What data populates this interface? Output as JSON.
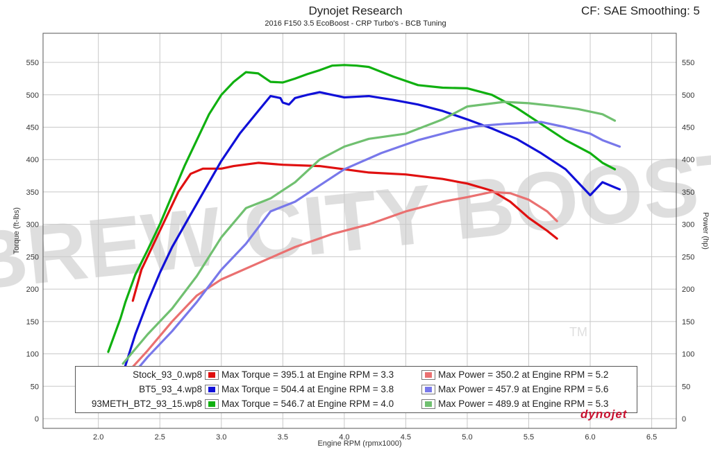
{
  "header": {
    "title": "Dynojet Research",
    "subtitle": "2016 F150 3.5 EcoBoost - CRP Turbo's - BCB Tuning",
    "corner_text": "CF: SAE Smoothing: 5"
  },
  "watermark": {
    "text": "BREW CITY BOOST",
    "mark": "TM"
  },
  "brand_logo": "dynojet",
  "legend": [
    {
      "name": "Stock_93_0.wp8",
      "torque_color": "#e01010",
      "power_color": "#ea7070",
      "torque_text": "Max Torque = 395.1 at Engine RPM = 3.3",
      "power_text": "Max Power = 350.2 at Engine RPM = 5.2"
    },
    {
      "name": "BT5_93_4.wp8",
      "torque_color": "#1010d8",
      "power_color": "#7878ea",
      "torque_text": "Max Torque = 504.4 at Engine RPM = 3.8",
      "power_text": "Max Power = 457.9 at Engine RPM = 5.6"
    },
    {
      "name": "93METH_BT2_93_15.wp8",
      "torque_color": "#10b010",
      "power_color": "#70c070",
      "torque_text": "Max Torque = 546.7 at Engine RPM = 4.0",
      "power_text": "Max Power = 489.9 at Engine RPM = 5.3"
    }
  ],
  "chart_data": {
    "type": "line",
    "title": "Dynojet Research",
    "subtitle": "2016 F150 3.5 EcoBoost - CRP Turbo's - BCB Tuning",
    "xlabel": "Engine RPM (rpmx1000)",
    "ylabel_left": "Torque (ft-lbs)",
    "ylabel_right": "Power (hp)",
    "xlim": [
      1.55,
      6.7
    ],
    "ylim": [
      -15,
      595
    ],
    "xticks": [
      "2.0",
      "2.5",
      "3.0",
      "3.5",
      "4.0",
      "4.5",
      "5.0",
      "5.5",
      "6.0",
      "6.5"
    ],
    "yticks": [
      "0",
      "50",
      "100",
      "150",
      "200",
      "250",
      "300",
      "350",
      "400",
      "450",
      "500",
      "550"
    ],
    "grid": true,
    "series": [
      {
        "name": "Stock_93_0.wp8",
        "measure": "torque",
        "color": "#e01010",
        "x": [
          2.28,
          2.35,
          2.5,
          2.65,
          2.75,
          2.85,
          3.0,
          3.1,
          3.3,
          3.5,
          3.8,
          4.0,
          4.2,
          4.5,
          4.8,
          5.0,
          5.2,
          5.35,
          5.5,
          5.65,
          5.73
        ],
        "y": [
          182,
          230,
          290,
          350,
          378,
          386,
          386,
          390,
          395,
          392,
          390,
          385,
          380,
          377,
          370,
          363,
          352,
          335,
          310,
          290,
          278
        ]
      },
      {
        "name": "BT5_93_4.wp8",
        "measure": "torque",
        "color": "#1010d8",
        "x": [
          2.2,
          2.3,
          2.4,
          2.5,
          2.6,
          2.75,
          2.9,
          3.0,
          3.15,
          3.3,
          3.4,
          3.48,
          3.5,
          3.55,
          3.6,
          3.7,
          3.8,
          3.9,
          4.0,
          4.2,
          4.4,
          4.6,
          4.8,
          5.0,
          5.2,
          5.4,
          5.6,
          5.8,
          6.0,
          6.1,
          6.2,
          6.24
        ],
        "y": [
          70,
          130,
          180,
          225,
          265,
          315,
          365,
          398,
          440,
          475,
          498,
          495,
          488,
          485,
          495,
          500,
          504,
          500,
          496,
          498,
          492,
          485,
          475,
          462,
          448,
          432,
          410,
          385,
          345,
          365,
          357,
          354
        ]
      },
      {
        "name": "93METH_BT2_93_15.wp8",
        "measure": "torque",
        "color": "#10b010",
        "x": [
          2.08,
          2.18,
          2.22,
          2.3,
          2.4,
          2.5,
          2.6,
          2.7,
          2.8,
          2.9,
          3.0,
          3.1,
          3.2,
          3.3,
          3.4,
          3.5,
          3.6,
          3.7,
          3.8,
          3.9,
          4.0,
          4.1,
          4.2,
          4.4,
          4.6,
          4.8,
          5.0,
          5.2,
          5.4,
          5.6,
          5.8,
          6.0,
          6.1,
          6.2
        ],
        "y": [
          103,
          155,
          180,
          222,
          260,
          300,
          345,
          390,
          430,
          470,
          500,
          520,
          535,
          533,
          520,
          519,
          525,
          532,
          538,
          545,
          546,
          545,
          543,
          528,
          515,
          511,
          510,
          500,
          480,
          455,
          430,
          410,
          395,
          385
        ]
      },
      {
        "name": "Stock_93_0.wp8",
        "measure": "power",
        "color": "#ea7070",
        "x": [
          2.28,
          2.4,
          2.6,
          2.8,
          3.0,
          3.3,
          3.6,
          3.9,
          4.2,
          4.5,
          4.8,
          5.0,
          5.2,
          5.35,
          5.5,
          5.65,
          5.73
        ],
        "y": [
          80,
          105,
          150,
          190,
          215,
          240,
          265,
          285,
          300,
          320,
          335,
          342,
          350,
          348,
          338,
          320,
          305
        ]
      },
      {
        "name": "BT5_93_4.wp8",
        "measure": "power",
        "color": "#7878ea",
        "x": [
          2.2,
          2.4,
          2.6,
          2.8,
          3.0,
          3.2,
          3.4,
          3.6,
          3.8,
          4.0,
          4.3,
          4.6,
          4.9,
          5.1,
          5.3,
          5.5,
          5.6,
          5.8,
          6.0,
          6.1,
          6.24
        ],
        "y": [
          50,
          95,
          135,
          180,
          230,
          270,
          320,
          335,
          360,
          385,
          410,
          430,
          445,
          452,
          455,
          457,
          458,
          450,
          440,
          430,
          420
        ]
      },
      {
        "name": "93METH_BT2_93_15.wp8",
        "measure": "power",
        "color": "#70c070",
        "x": [
          2.2,
          2.4,
          2.6,
          2.8,
          3.0,
          3.2,
          3.4,
          3.6,
          3.8,
          4.0,
          4.2,
          4.5,
          4.8,
          5.0,
          5.3,
          5.5,
          5.7,
          5.9,
          6.1,
          6.2
        ],
        "y": [
          85,
          130,
          170,
          220,
          280,
          325,
          340,
          365,
          400,
          420,
          432,
          440,
          462,
          482,
          489,
          487,
          483,
          478,
          470,
          460
        ]
      }
    ]
  }
}
